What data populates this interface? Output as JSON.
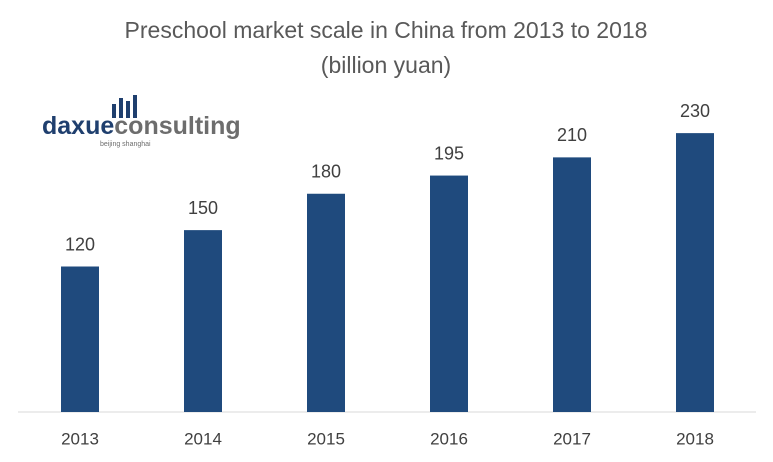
{
  "chart_data": {
    "type": "bar",
    "title": "Preschool market scale in China from 2013 to 2018",
    "subtitle": "(billion yuan)",
    "categories": [
      "2013",
      "2014",
      "2015",
      "2016",
      "2017",
      "2018"
    ],
    "values": [
      120,
      150,
      180,
      195,
      210,
      230
    ],
    "color": "#1f4a7d",
    "ylim": [
      0,
      240
    ],
    "grid": false
  },
  "logo": {
    "brand_first": "daxue",
    "brand_second": "consulting",
    "tagline": "beijing shanghai"
  }
}
